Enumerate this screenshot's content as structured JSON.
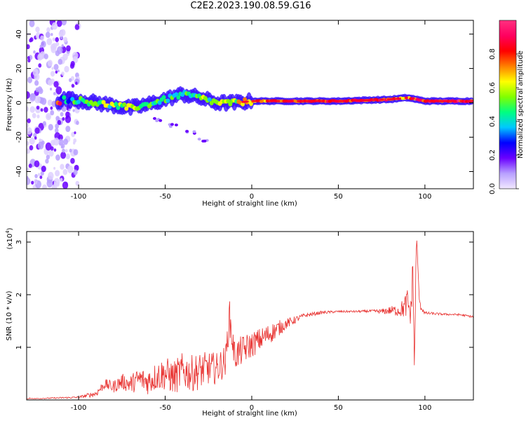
{
  "title": "C2E2.2023.190.08.59.G16",
  "chart_data": [
    {
      "type": "heatmap",
      "xlabel": "Height of straight line (km)",
      "ylabel": "Frequency (Hz)",
      "xlim": [
        -130,
        128
      ],
      "ylim": [
        -50,
        48
      ],
      "x_ticks": [
        -100,
        -50,
        0,
        50,
        100
      ],
      "y_ticks": [
        -40,
        -20,
        0,
        20,
        40
      ],
      "colorbar": {
        "label": "Normalized spectral amplitude",
        "range": [
          0,
          1
        ],
        "ticks": [
          "0.0",
          "0.2",
          "0.4",
          "0.6",
          "0.8"
        ],
        "colors": [
          "#f2e8ff",
          "#b8a0ff",
          "#6a00ff",
          "#0000ff",
          "#00c8ff",
          "#00ff80",
          "#80ff00",
          "#ffff00",
          "#ff8000",
          "#ff0000",
          "#ff0060",
          "#ff3080"
        ]
      },
      "ridge": [
        {
          "x": -110,
          "y": 2,
          "amp": 0.35
        },
        {
          "x": -100,
          "y": 1.5,
          "amp": 0.45
        },
        {
          "x": -90,
          "y": 0,
          "amp": 0.6
        },
        {
          "x": -80,
          "y": -1.5,
          "amp": 0.5
        },
        {
          "x": -70,
          "y": -3,
          "amp": 0.55
        },
        {
          "x": -60,
          "y": -1,
          "amp": 0.5
        },
        {
          "x": -50,
          "y": 2,
          "amp": 0.45
        },
        {
          "x": -40,
          "y": 5,
          "amp": 0.45
        },
        {
          "x": -30,
          "y": 3,
          "amp": 0.5
        },
        {
          "x": -20,
          "y": 0,
          "amp": 0.55
        },
        {
          "x": -10,
          "y": 0,
          "amp": 0.6
        },
        {
          "x": 0,
          "y": 1,
          "amp": 0.7
        },
        {
          "x": 20,
          "y": 1,
          "amp": 0.8
        },
        {
          "x": 50,
          "y": 1,
          "amp": 0.85
        },
        {
          "x": 80,
          "y": 2,
          "amp": 0.8
        },
        {
          "x": 90,
          "y": 3,
          "amp": 0.75
        },
        {
          "x": 100,
          "y": 1,
          "amp": 0.85
        },
        {
          "x": 128,
          "y": 1,
          "amp": 0.85
        }
      ],
      "secondary_branch": [
        {
          "x": -55,
          "y": -10
        },
        {
          "x": -45,
          "y": -13
        },
        {
          "x": -35,
          "y": -17
        },
        {
          "x": -28,
          "y": -22
        }
      ]
    },
    {
      "type": "line",
      "xlabel": "Height of straight line (km)",
      "ylabel": "SNR (10 * v/v)",
      "y_scale_label": "(x10",
      "y_scale_exp": "4",
      "y_scale_close": ")",
      "xlim": [
        -130,
        128
      ],
      "ylim": [
        0,
        3.2
      ],
      "x_ticks": [
        -100,
        -50,
        0,
        50,
        100
      ],
      "y_ticks": [
        1,
        2,
        3
      ],
      "color": "#e8312f",
      "series": [
        {
          "x": [
            -130,
            -100,
            -90,
            -85,
            -80,
            -75,
            -70,
            -65,
            -60,
            -55,
            -50,
            -45,
            -40,
            -35,
            -30,
            -25,
            -20,
            -15,
            -13,
            -10,
            -5,
            0,
            5,
            10,
            15,
            20,
            25,
            30,
            40,
            50,
            60,
            70,
            75,
            80,
            85,
            88,
            90,
            92,
            93,
            94,
            95,
            97,
            100,
            110,
            120,
            128
          ],
          "y": [
            0.02,
            0.05,
            0.12,
            0.3,
            0.25,
            0.35,
            0.3,
            0.4,
            0.35,
            0.45,
            0.5,
            0.42,
            0.55,
            0.5,
            0.55,
            0.6,
            0.6,
            0.75,
            1.6,
            0.85,
            0.95,
            1.05,
            1.15,
            1.25,
            1.35,
            1.45,
            1.52,
            1.6,
            1.66,
            1.68,
            1.68,
            1.69,
            1.68,
            1.7,
            1.7,
            1.75,
            1.85,
            1.6,
            2.6,
            0.5,
            3.1,
            1.8,
            1.65,
            1.63,
            1.62,
            1.58
          ],
          "noise": [
            0.005,
            0.02,
            0.06,
            0.1,
            0.12,
            0.15,
            0.18,
            0.22,
            0.25,
            0.28,
            0.32,
            0.33,
            0.35,
            0.35,
            0.35,
            0.32,
            0.3,
            0.3,
            0.35,
            0.3,
            0.28,
            0.25,
            0.22,
            0.2,
            0.16,
            0.1,
            0.07,
            0.04,
            0.03,
            0.02,
            0.02,
            0.025,
            0.05,
            0.08,
            0.12,
            0.2,
            0.3,
            0.3,
            0.3,
            0.3,
            0.25,
            0.08,
            0.03,
            0.02,
            0.02,
            0.02
          ]
        }
      ]
    }
  ]
}
